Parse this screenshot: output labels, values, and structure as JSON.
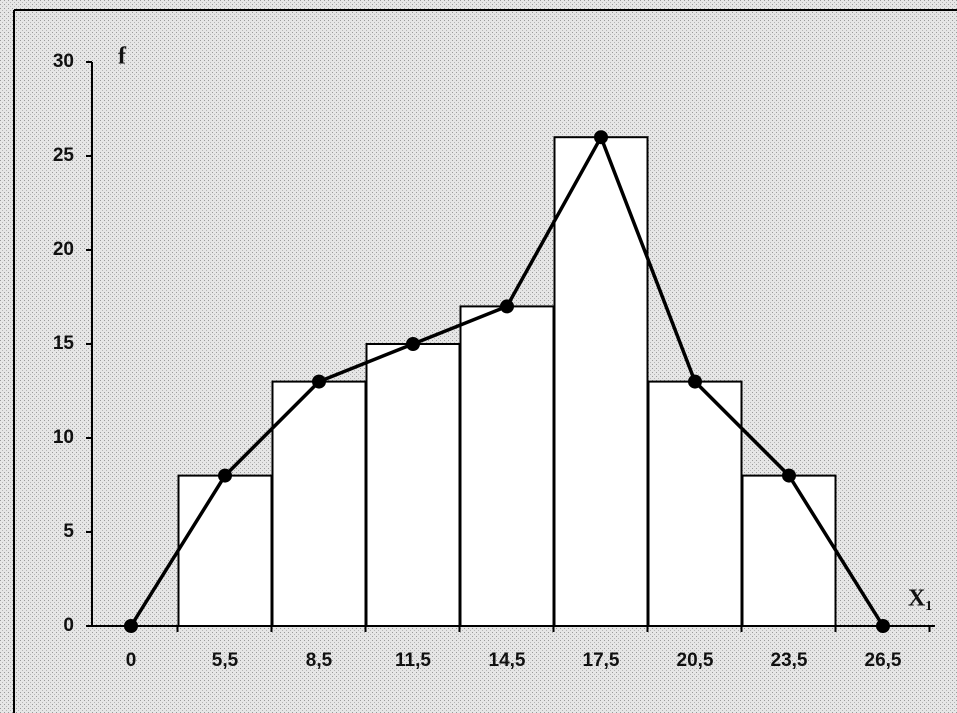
{
  "chart_data": {
    "type": "bar",
    "x_label": "X₁",
    "y_label": "f",
    "categories": [
      "0",
      "5,5",
      "8,5",
      "11,5",
      "14,5",
      "17,5",
      "20,5",
      "23,5",
      "26,5"
    ],
    "series": [
      {
        "type": "bar",
        "color": "#ffffff",
        "values": [
          null,
          8,
          13,
          15,
          17,
          26,
          13,
          8,
          null
        ]
      },
      {
        "type": "line",
        "color": "#000000",
        "values": [
          0,
          8,
          13,
          15,
          17,
          26,
          13,
          8,
          0
        ]
      }
    ],
    "ylim": [
      0,
      30
    ],
    "yticks": [
      0,
      5,
      10,
      15,
      20,
      25,
      30
    ]
  }
}
